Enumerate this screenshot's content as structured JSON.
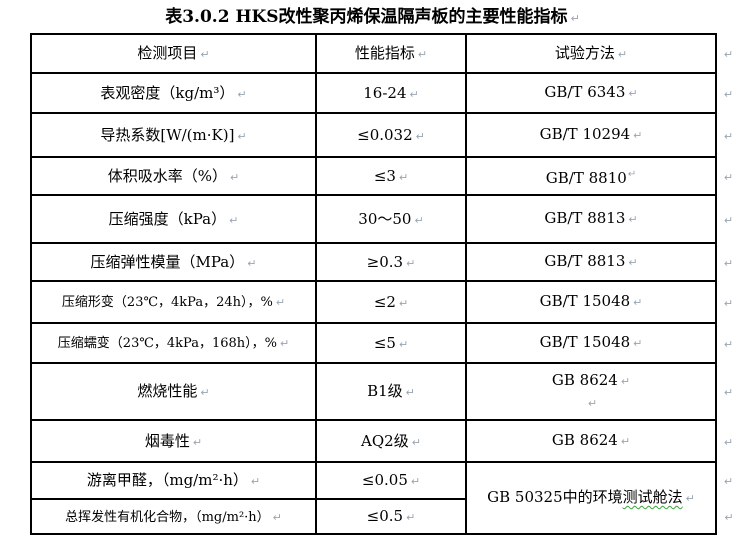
{
  "document": {
    "title": "表3.0.2 HKS改性聚丙烯保温隔声板的主要性能指标",
    "formatting_mark": "↵",
    "colors": {
      "text": "#000000",
      "border": "#000000",
      "formatting_mark": "#9aa5b2",
      "spellcheck_squiggle": "#3aa33a"
    },
    "table": {
      "headers": [
        "检测项目",
        "性能指标",
        "试验方法"
      ],
      "rows": [
        {
          "item": "表观密度（kg/m³）",
          "value": "16-24",
          "method": "GB/T 6343"
        },
        {
          "item": "导热系数[W/(m·K)]",
          "value": "≤0.032",
          "method": "GB/T 10294"
        },
        {
          "item": "体积吸水率（%）",
          "value": "≤3",
          "method": "GB/T 8810",
          "method_mark_raised": true
        },
        {
          "item": "压缩强度（kPa）",
          "value": "30～50",
          "method": "GB/T 8813"
        },
        {
          "item": "压缩弹性模量（MPa）",
          "value": "≥0.3",
          "method": "GB/T 8813"
        },
        {
          "item": "压缩形变（23℃，4kPa，24h），%",
          "value": "≤2",
          "method": "GB/T 15048"
        },
        {
          "item": "压缩蠕变（23℃，4kPa，168h），%",
          "value": "≤5",
          "method": "GB/T 15048"
        },
        {
          "item": "燃烧性能",
          "value": "B1级",
          "method": "GB 8624",
          "method_extra_blank_line": true
        },
        {
          "item": "烟毒性",
          "value": "AQ2级",
          "method": "GB 8624"
        },
        {
          "item": "游离甲醛，（mg/m²·h）",
          "value": "≤0.05",
          "method": "GB 50325中的环境测试舱法",
          "method_rowspan": 2,
          "method_squiggle_part": "测试舱法"
        },
        {
          "item": "总挥发性有机化合物，（mg/m²·h）",
          "value": "≤0.5",
          "method": null
        }
      ]
    }
  }
}
